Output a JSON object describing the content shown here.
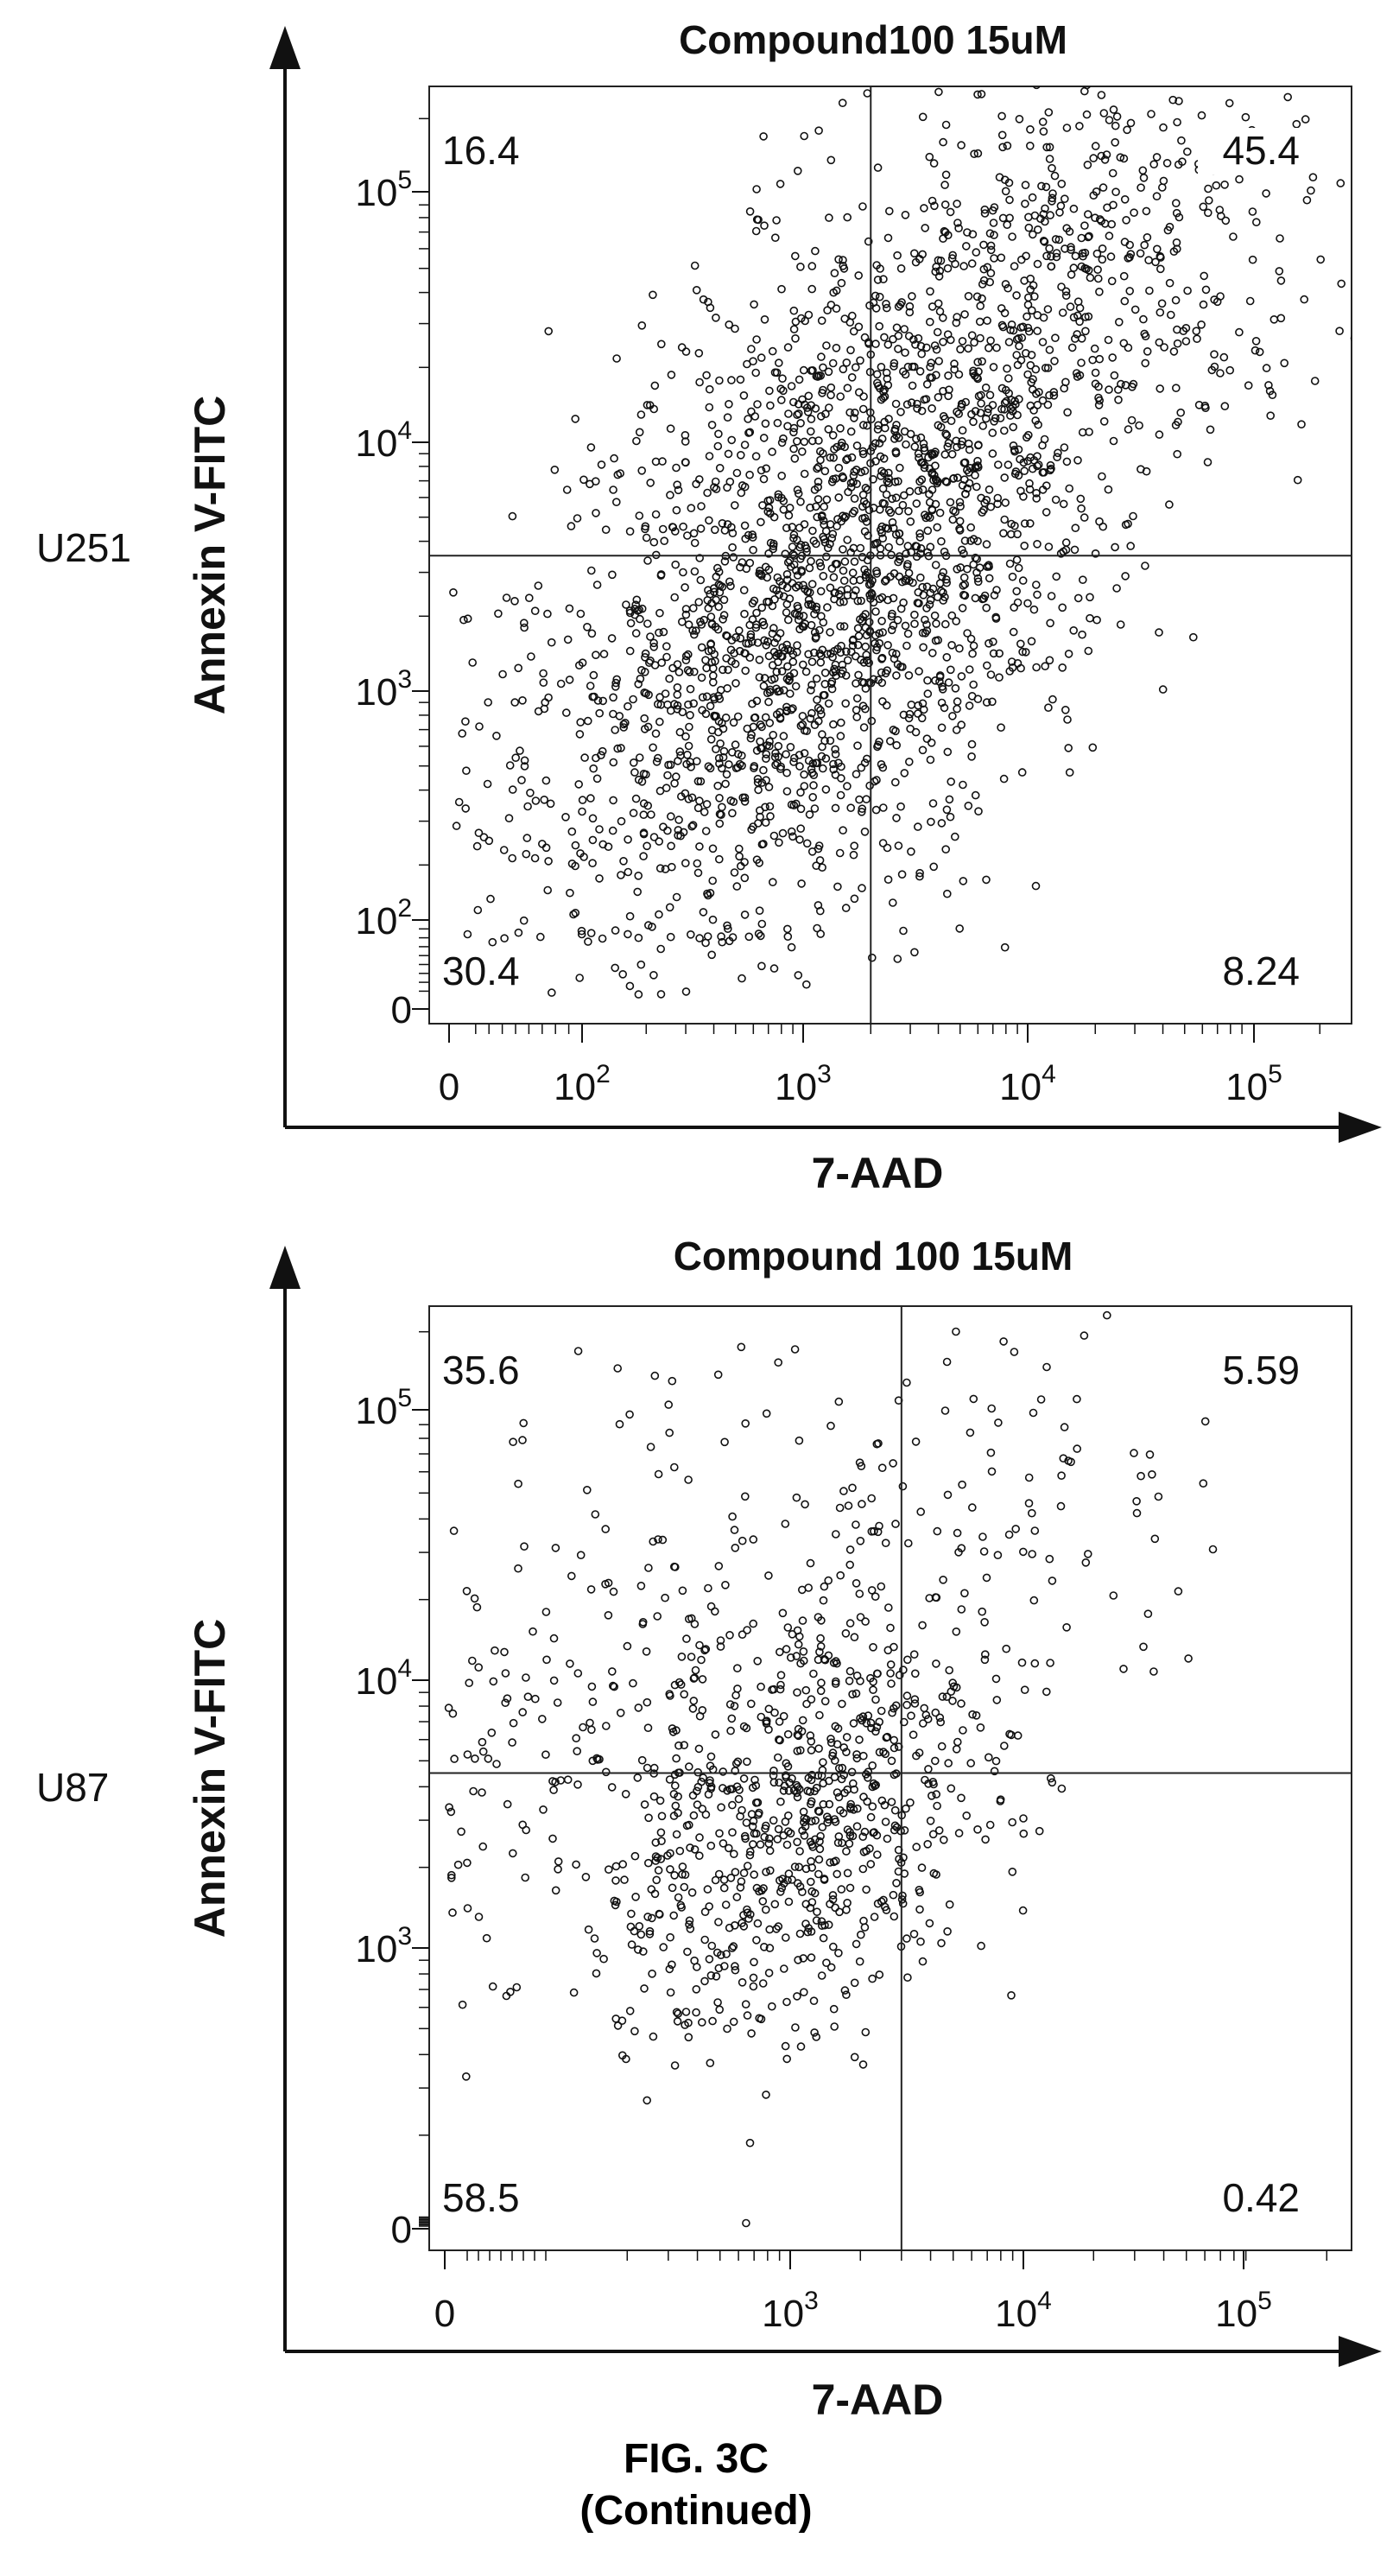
{
  "chart_data": [
    {
      "type": "scatter",
      "title": "Compound100 15uM",
      "row_label": "U251",
      "xlabel": "7-AAD",
      "ylabel": "Annexin V-FITC",
      "x_scale": "biexponential",
      "y_scale": "biexponential",
      "xlim": [
        -100,
        200000
      ],
      "ylim": [
        -50,
        250000
      ],
      "x_tick_labels": [
        "0",
        "10^2",
        "10^3",
        "10^4",
        "10^5"
      ],
      "y_tick_labels": [
        "0",
        "10^2",
        "10^3",
        "10^4",
        "10^5"
      ],
      "gate": {
        "x": 2000,
        "y": 3500
      },
      "quadrants": {
        "upper_left": "16.4",
        "upper_right": "45.4",
        "lower_left": "30.4",
        "lower_right": "8.24"
      },
      "population_centers": [
        {
          "x": 600,
          "y": 900,
          "spread": 0.42,
          "weight": 0.3
        },
        {
          "x": 1500,
          "y": 2200,
          "spread": 0.32,
          "weight": 0.28
        },
        {
          "x": 2500,
          "y": 15000,
          "spread": 0.35,
          "weight": 0.22
        },
        {
          "x": 15000,
          "y": 40000,
          "spread": 0.38,
          "weight": 0.2
        }
      ],
      "n_events": 2600
    },
    {
      "type": "scatter",
      "title": "Compound 100 15uM",
      "row_label": "U87",
      "xlabel": "7-AAD",
      "ylabel": "Annexin V-FITC",
      "x_scale": "biexponential",
      "y_scale": "biexponential",
      "xlim": [
        -100,
        200000
      ],
      "ylim": [
        -50,
        250000
      ],
      "x_tick_labels": [
        "0",
        "10^3",
        "10^4",
        "10^5"
      ],
      "y_tick_labels": [
        "0",
        "10^3",
        "10^4",
        "10^5"
      ],
      "gate": {
        "x": 3000,
        "y": 4500
      },
      "quadrants": {
        "upper_left": "35.6",
        "upper_right": "5.59",
        "lower_left": "58.5",
        "lower_right": "0.42"
      },
      "population_centers": [
        {
          "x": 1100,
          "y": 2500,
          "spread": 0.25,
          "weight": 0.55
        },
        {
          "x": 300,
          "y": 12000,
          "spread": 0.4,
          "weight": 0.28
        },
        {
          "x": 8000,
          "y": 30000,
          "spread": 0.35,
          "weight": 0.12
        },
        {
          "x": 1500,
          "y": 6000,
          "spread": 0.2,
          "weight": 0.05
        }
      ],
      "n_events": 1100
    }
  ],
  "caption": {
    "figure": "FIG. 3C",
    "note": "(Continued)"
  }
}
